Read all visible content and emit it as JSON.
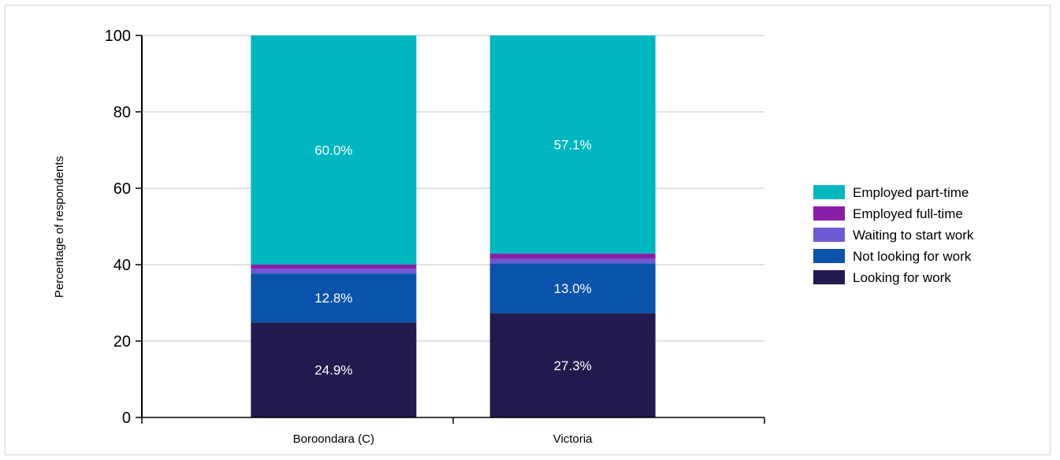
{
  "chart_data": {
    "type": "bar",
    "stacked": true,
    "categories": [
      "Boroondara (C)",
      "Victoria"
    ],
    "ylabel": "Percentage of respondents",
    "ylim": [
      0,
      100
    ],
    "y_ticks": [
      "0",
      "20",
      "40",
      "60",
      "80",
      "100"
    ],
    "grid": true,
    "legend_position": "right",
    "series": [
      {
        "name": "Looking for work",
        "color": "#231a4f",
        "values": [
          24.9,
          27.3
        ],
        "labels": [
          "24.9%",
          "27.3%"
        ]
      },
      {
        "name": "Not looking for work",
        "color": "#0a53ab",
        "values": [
          12.8,
          13.0
        ],
        "labels": [
          "12.8%",
          "13.0%"
        ]
      },
      {
        "name": "Waiting to start work",
        "color": "#6b5ad6",
        "values": [
          1.2,
          1.2
        ],
        "labels": [
          "",
          ""
        ]
      },
      {
        "name": "Employed full-time",
        "color": "#8a1ea8",
        "values": [
          1.1,
          1.4
        ],
        "labels": [
          "",
          ""
        ]
      },
      {
        "name": "Employed part-time",
        "color": "#00b7bf",
        "values": [
          60.0,
          57.1
        ],
        "labels": [
          "60.0%",
          "57.1%"
        ]
      }
    ],
    "legend_order": [
      "Employed part-time",
      "Employed full-time",
      "Waiting to start work",
      "Not looking for work",
      "Looking for work"
    ]
  }
}
